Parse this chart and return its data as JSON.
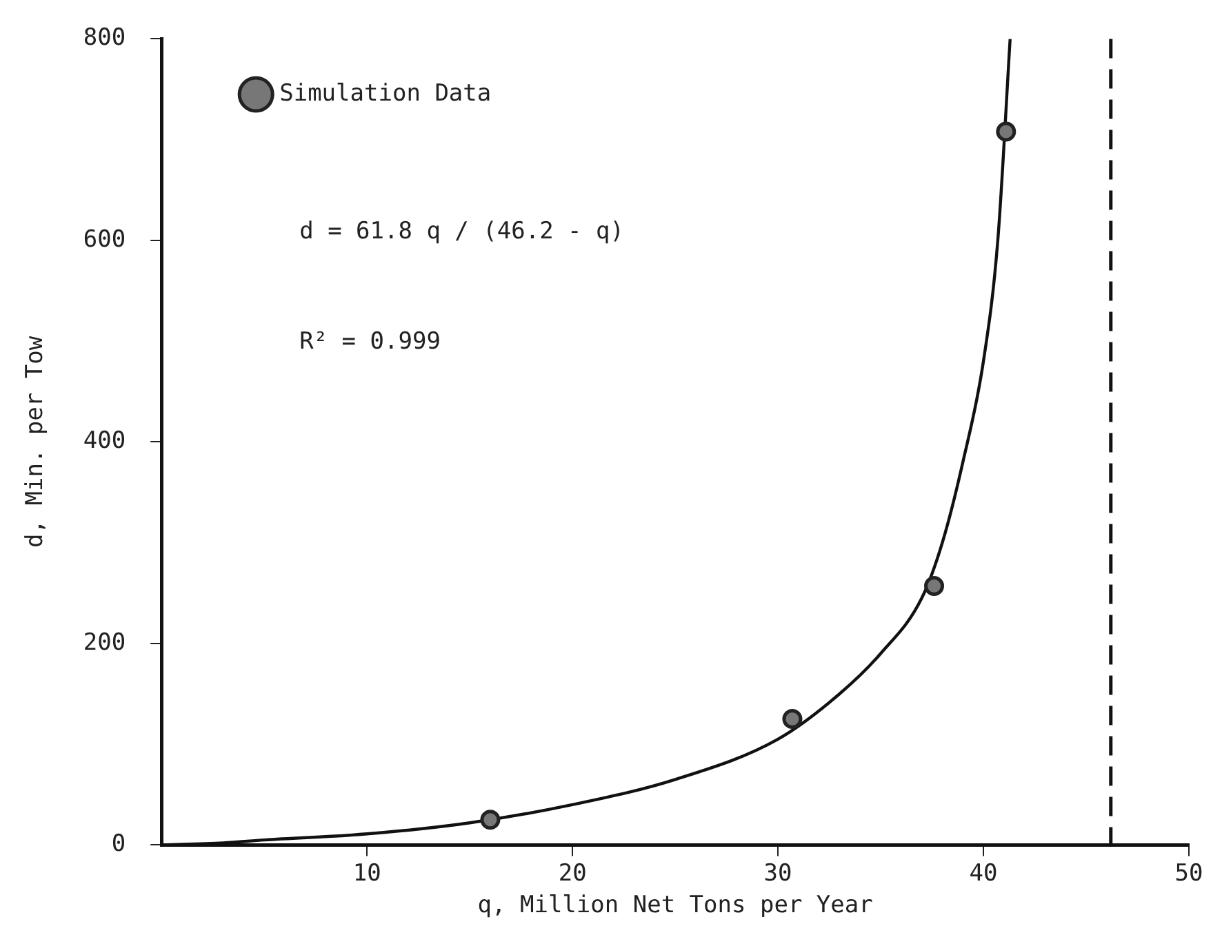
{
  "chart_data": {
    "type": "scatter",
    "xlabel": "q, Million Net Tons per Year",
    "ylabel": "d, Min. per Tow",
    "xlim": [
      0,
      50
    ],
    "ylim": [
      0,
      800
    ],
    "xticks": [
      10,
      20,
      30,
      40,
      50
    ],
    "yticks": [
      0,
      200,
      400,
      600,
      800
    ],
    "grid": false,
    "legend": "top left",
    "marker": "circle",
    "series": [
      {
        "name": "Simulation Data",
        "color": "#222222",
        "x": [
          16,
          30.7,
          37.6,
          41.1
        ],
        "values": [
          25,
          125,
          257,
          708
        ]
      },
      {
        "type": "line",
        "color": "#111111",
        "marker": "none",
        "x": [
          0,
          3,
          5,
          10,
          15,
          20,
          25,
          30,
          33,
          35,
          37,
          38,
          39,
          40,
          40.7,
          41.3
        ],
        "values": [
          0,
          2,
          5,
          11,
          22,
          40,
          65,
          105,
          150,
          190,
          245,
          300,
          380,
          480,
          600,
          800
        ]
      }
    ],
    "ref_lines": [
      {
        "axis": "x",
        "value": 46.2,
        "color": "#111111",
        "line_style": "dashed"
      }
    ],
    "annotations": [
      "d = 61.8 q / (46.2 - q)",
      "R² = 0.999"
    ]
  }
}
